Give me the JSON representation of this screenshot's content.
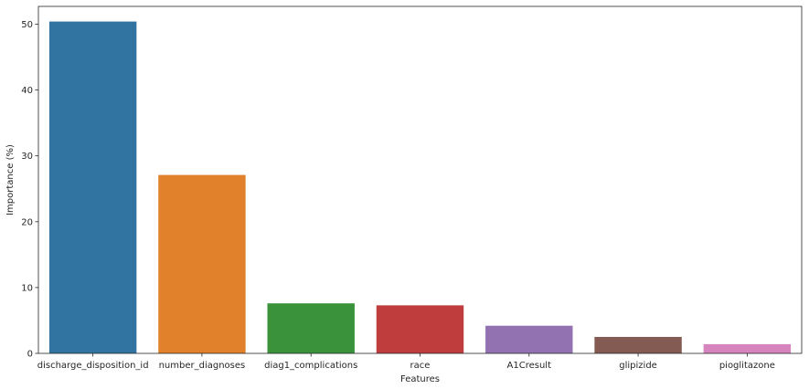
{
  "chart_data": {
    "type": "bar",
    "title": "",
    "xlabel": "Features",
    "ylabel": "Importance (%)",
    "categories": [
      "discharge_disposition_id",
      "number_diagnoses",
      "diag1_complications",
      "race",
      "A1Cresult",
      "glipizide",
      "pioglitazone"
    ],
    "values": [
      50.4,
      27.1,
      7.6,
      7.3,
      4.2,
      2.5,
      1.4
    ],
    "colors": [
      "#3274a1",
      "#e1812c",
      "#3a923a",
      "#c03d3e",
      "#9372b2",
      "#845b53",
      "#d684bd"
    ],
    "ylim": [
      0,
      52.7
    ],
    "yticks": [
      0,
      10,
      20,
      30,
      40,
      50
    ],
    "grid": false,
    "legend": "none"
  }
}
